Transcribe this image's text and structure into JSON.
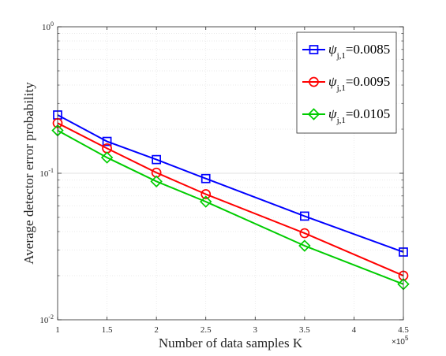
{
  "chart_data": {
    "type": "line",
    "x": [
      1,
      1.5,
      2,
      2.5,
      3.5,
      4.5
    ],
    "x_multiplier_label": "×10^5",
    "xlabel": "Number of data samples K",
    "ylabel": "Average detector error probability",
    "xlim": [
      1,
      4.5
    ],
    "ylim": [
      0.01,
      1
    ],
    "yscale": "log",
    "xticks": [
      "1",
      "1.5",
      "2",
      "2.5",
      "3",
      "3.5",
      "4",
      "4.5"
    ],
    "yticks": [
      {
        "base": "10",
        "exp": "-2",
        "value": 0.01
      },
      {
        "base": "10",
        "exp": "-1",
        "value": 0.1
      },
      {
        "base": "10",
        "exp": "0",
        "value": 1
      }
    ],
    "grid": true,
    "legend_position": "top-right",
    "series": [
      {
        "name": "ψj,1=0.0085",
        "symbol": "ψ",
        "sub": "j,1",
        "value_text": "=0.0085",
        "color": "#0000ff",
        "marker": "square",
        "values": [
          0.25,
          0.165,
          0.124,
          0.092,
          0.051,
          0.029
        ]
      },
      {
        "name": "ψj,1=0.0095",
        "symbol": "ψ",
        "sub": "j,1",
        "value_text": "=0.0095",
        "color": "#ff0000",
        "marker": "circle",
        "values": [
          0.22,
          0.148,
          0.101,
          0.072,
          0.039,
          0.02
        ]
      },
      {
        "name": "ψj,1=0.0105",
        "symbol": "ψ",
        "sub": "j,1",
        "value_text": "=0.0105",
        "color": "#00cc00",
        "marker": "diamond",
        "values": [
          0.196,
          0.128,
          0.088,
          0.064,
          0.032,
          0.0175
        ]
      }
    ]
  }
}
